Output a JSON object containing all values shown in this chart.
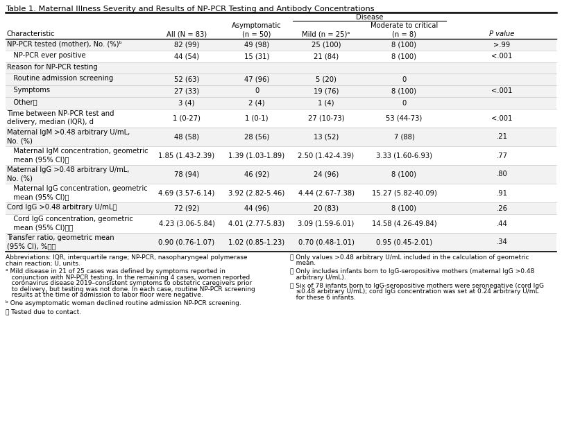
{
  "title": "Table 1. Maternal Illness Severity and Results of NP-PCR Testing and Antibody Concentrations",
  "disease_label": "Disease",
  "rows": [
    {
      "char": "NP-PCR tested (mother), No. (%)ᵇ",
      "all": "82 (99)",
      "asymp": "49 (98)",
      "mild": "25 (100)",
      "mod": "8 (100)",
      "pval": ">.99",
      "indent": 0,
      "shaded": true,
      "two_line": false
    },
    {
      "char": "   NP-PCR ever positive",
      "all": "44 (54)",
      "asymp": "15 (31)",
      "mild": "21 (84)",
      "mod": "8 (100)",
      "pval": "<.001",
      "indent": 1,
      "shaded": false,
      "two_line": false
    },
    {
      "char": "Reason for NP-PCR testing",
      "all": "",
      "asymp": "",
      "mild": "",
      "mod": "",
      "pval": "",
      "indent": 0,
      "shaded": true,
      "two_line": false,
      "section_header": true
    },
    {
      "char": "   Routine admission screening",
      "all": "52 (63)",
      "asymp": "47 (96)",
      "mild": "5 (20)",
      "mod": "0",
      "pval": "",
      "indent": 2,
      "shaded": true,
      "two_line": false
    },
    {
      "char": "   Symptoms",
      "all": "27 (33)",
      "asymp": "0",
      "mild": "19 (76)",
      "mod": "8 (100)",
      "pval": "<.001",
      "indent": 2,
      "shaded": true,
      "two_line": false
    },
    {
      "char": "   Otherၣ",
      "all": "3 (4)",
      "asymp": "2 (4)",
      "mild": "1 (4)",
      "mod": "0",
      "pval": "",
      "indent": 2,
      "shaded": true,
      "two_line": false
    },
    {
      "char": "Time between NP-PCR test and\ndelivery, median (IQR), d",
      "all": "1 (0-27)",
      "asymp": "1 (0-1)",
      "mild": "27 (10-73)",
      "mod": "53 (44-73)",
      "pval": "<.001",
      "indent": 0,
      "shaded": false,
      "two_line": true
    },
    {
      "char": "Maternal IgM >0.48 arbitrary U/mL,\nNo. (%)",
      "all": "48 (58)",
      "asymp": "28 (56)",
      "mild": "13 (52)",
      "mod": "7 (88)",
      "pval": ".21",
      "indent": 0,
      "shaded": true,
      "two_line": true
    },
    {
      "char": "   Maternal IgM concentration, geometric\n   mean (95% CI)ၤ",
      "all": "1.85 (1.43-2.39)",
      "asymp": "1.39 (1.03-1.89)",
      "mild": "2.50 (1.42-4.39)",
      "mod": "3.33 (1.60-6.93)",
      "pval": ".77",
      "indent": 1,
      "shaded": false,
      "two_line": true
    },
    {
      "char": "Maternal IgG >0.48 arbitrary U/mL,\nNo. (%)",
      "all": "78 (94)",
      "asymp": "46 (92)",
      "mild": "24 (96)",
      "mod": "8 (100)",
      "pval": ".80",
      "indent": 0,
      "shaded": true,
      "two_line": true
    },
    {
      "char": "   Maternal IgG concentration, geometric\n   mean (95% CI)ၤ",
      "all": "4.69 (3.57-6.14)",
      "asymp": "3.92 (2.82-5.46)",
      "mild": "4.44 (2.67-7.38)",
      "mod": "15.27 (5.82-40.09)",
      "pval": ".91",
      "indent": 1,
      "shaded": false,
      "two_line": true
    },
    {
      "char": "Cord IgG >0.48 arbitrary U/mLၥ",
      "all": "72 (92)",
      "asymp": "44 (96)",
      "mild": "20 (83)",
      "mod": "8 (100)",
      "pval": ".26",
      "indent": 0,
      "shaded": true,
      "two_line": false
    },
    {
      "char": "   Cord IgG concentration, geometric\n   mean (95% CI)ၥၦ",
      "all": "4.23 (3.06-5.84)",
      "asymp": "4.01 (2.77-5.83)",
      "mild": "3.09 (1.59-6.01)",
      "mod": "14.58 (4.26-49.84)",
      "pval": ".44",
      "indent": 1,
      "shaded": false,
      "two_line": true
    },
    {
      "char": "Transfer ratio, geometric mean\n(95% CI), %ၥၦ",
      "all": "0.90 (0.76-1.07)",
      "asymp": "1.02 (0.85-1.23)",
      "mild": "0.70 (0.48-1.01)",
      "mod": "0.95 (0.45-2.01)",
      "pval": ".34",
      "indent": 0,
      "shaded": true,
      "two_line": true
    }
  ],
  "bg_color": "#ffffff",
  "shaded_color": "#f2f2f2",
  "font_size": 7.2,
  "header_font_size": 7.2,
  "title_font_size": 8.2,
  "footnote_font_size": 6.5
}
